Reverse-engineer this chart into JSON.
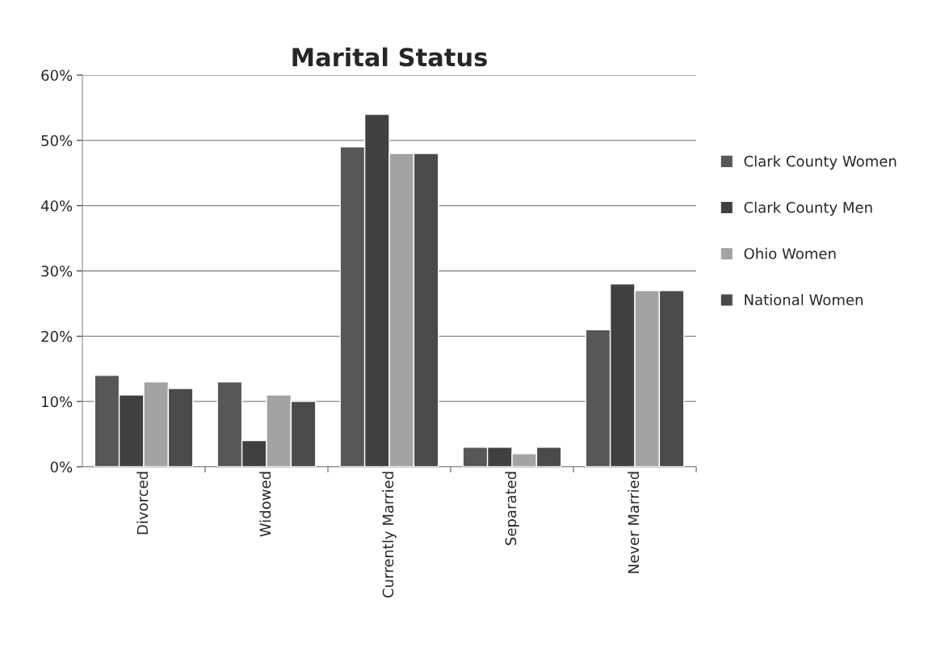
{
  "chart_data": {
    "type": "bar",
    "title": "Marital Status",
    "categories": [
      "Divorced",
      "Widowed",
      "Currently Married",
      "Separated",
      "Never Married"
    ],
    "series": [
      {
        "name": "Clark County Women",
        "color": "#575757",
        "values": [
          14,
          13,
          49,
          3,
          21
        ]
      },
      {
        "name": "Clark County Men",
        "color": "#404040",
        "values": [
          11,
          4,
          54,
          3,
          28
        ]
      },
      {
        "name": "Ohio Women",
        "color": "#a3a3a3",
        "values": [
          13,
          11,
          48,
          2,
          27
        ]
      },
      {
        "name": "National Women",
        "color": "#4a4a4a",
        "values": [
          12,
          10,
          48,
          3,
          27
        ]
      }
    ],
    "ylim": [
      0,
      60
    ],
    "yticks": [
      {
        "value": 0,
        "label": "0%"
      },
      {
        "value": 10,
        "label": "10%"
      },
      {
        "value": 20,
        "label": "20%"
      },
      {
        "value": 30,
        "label": "30%"
      },
      {
        "value": 40,
        "label": "40%"
      },
      {
        "value": 50,
        "label": "50%"
      },
      {
        "value": 60,
        "label": "60%"
      }
    ],
    "grid": "y",
    "legend": "right"
  }
}
